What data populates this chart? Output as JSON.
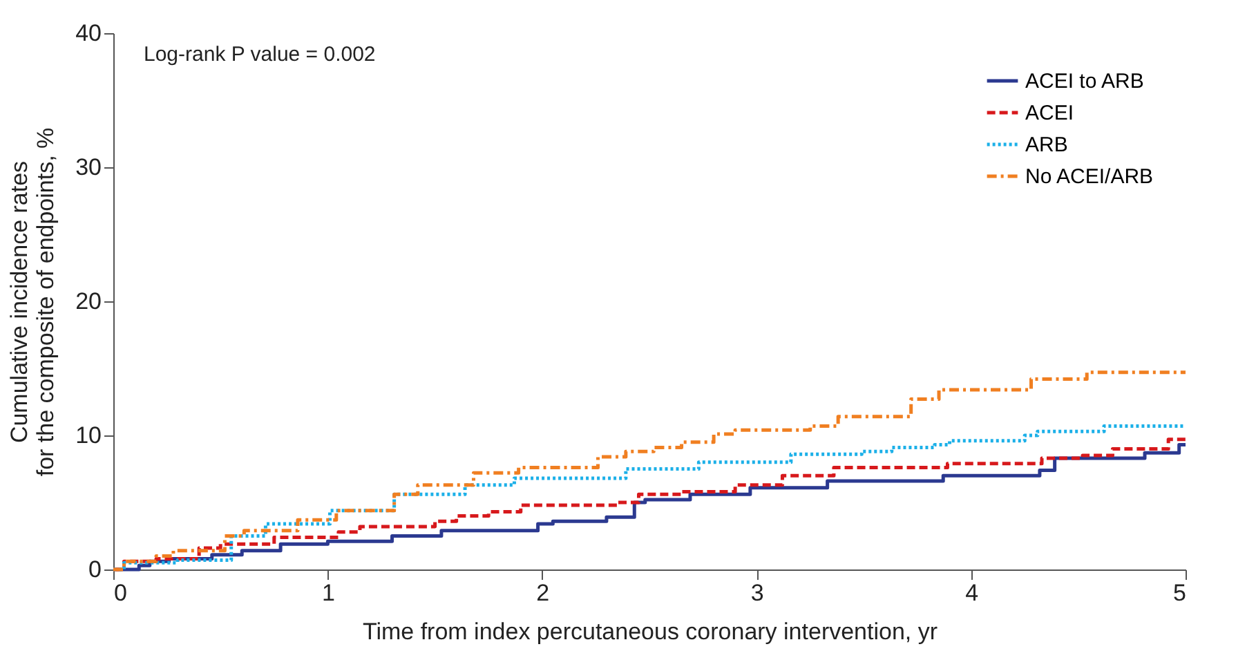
{
  "chart_data": {
    "type": "step",
    "xlabel": "Time from index percutaneous coronary intervention, yr",
    "ylabel": "Cumulative incidence rates\nfor the composite of endpoints, %",
    "xlim": [
      0,
      5
    ],
    "ylim": [
      0,
      40
    ],
    "xticks": [
      0,
      1,
      2,
      3,
      4,
      5
    ],
    "yticks": [
      0,
      10,
      20,
      30,
      40
    ],
    "grid": false,
    "legend": "top right",
    "annotations": [
      "Log-rank P value = 0.002"
    ],
    "series": [
      {
        "name": "ACEI to ARB",
        "color": "#2b3990",
        "line_style": "solid",
        "x": [
          0,
          0.12,
          0.17,
          0.26,
          0.46,
          0.6,
          0.78,
          1.0,
          1.3,
          1.53,
          1.98,
          2.05,
          2.3,
          2.43,
          2.48,
          2.69,
          2.97,
          3.33,
          3.87,
          4.32,
          4.39,
          4.81,
          4.97,
          5.0
        ],
        "values": [
          0,
          0.3,
          0.6,
          0.8,
          1.1,
          1.4,
          1.9,
          2.1,
          2.5,
          2.9,
          3.4,
          3.6,
          3.9,
          5.0,
          5.2,
          5.6,
          6.1,
          6.6,
          7.0,
          7.4,
          8.3,
          8.7,
          9.3,
          9.3
        ]
      },
      {
        "name": "ACEI",
        "color": "#d7191c",
        "line_style": "dashed",
        "x": [
          0,
          0.05,
          0.2,
          0.4,
          0.5,
          0.75,
          1.05,
          1.15,
          1.5,
          1.6,
          1.75,
          1.9,
          2.35,
          2.45,
          2.65,
          2.9,
          3.12,
          3.36,
          3.89,
          4.33,
          4.52,
          4.66,
          4.92,
          5.0
        ],
        "values": [
          0,
          0.6,
          0.8,
          1.6,
          1.9,
          2.4,
          2.8,
          3.2,
          3.6,
          4.0,
          4.3,
          4.8,
          5.0,
          5.6,
          5.8,
          6.3,
          7.0,
          7.6,
          7.9,
          8.3,
          8.5,
          9.0,
          9.7,
          9.7
        ]
      },
      {
        "name": "ARB",
        "color": "#1cb0e8",
        "line_style": "dotted",
        "x": [
          0,
          0.05,
          0.3,
          0.55,
          0.71,
          1.01,
          1.31,
          1.64,
          1.87,
          2.39,
          2.73,
          3.16,
          3.49,
          3.63,
          3.83,
          3.9,
          4.25,
          4.31,
          4.62,
          5.0
        ],
        "values": [
          0,
          0.5,
          0.7,
          2.5,
          3.4,
          4.4,
          5.6,
          6.3,
          6.8,
          7.5,
          8.0,
          8.6,
          8.8,
          9.1,
          9.3,
          9.6,
          10.0,
          10.3,
          10.7,
          10.7
        ]
      },
      {
        "name": "No ACEI/ARB",
        "color": "#f07f21",
        "line_style": "dashdot",
        "x": [
          0,
          0.05,
          0.2,
          0.28,
          0.52,
          0.61,
          0.86,
          1.04,
          1.31,
          1.42,
          1.68,
          1.89,
          2.26,
          2.39,
          2.52,
          2.65,
          2.8,
          2.9,
          3.25,
          3.38,
          3.72,
          3.85,
          4.28,
          4.54,
          5.0
        ],
        "values": [
          0,
          0.6,
          1.0,
          1.4,
          2.5,
          2.9,
          3.7,
          4.4,
          5.6,
          6.3,
          7.2,
          7.6,
          8.4,
          8.8,
          9.1,
          9.5,
          10.1,
          10.4,
          10.7,
          11.4,
          12.7,
          13.4,
          14.2,
          14.7,
          14.7
        ]
      }
    ]
  }
}
